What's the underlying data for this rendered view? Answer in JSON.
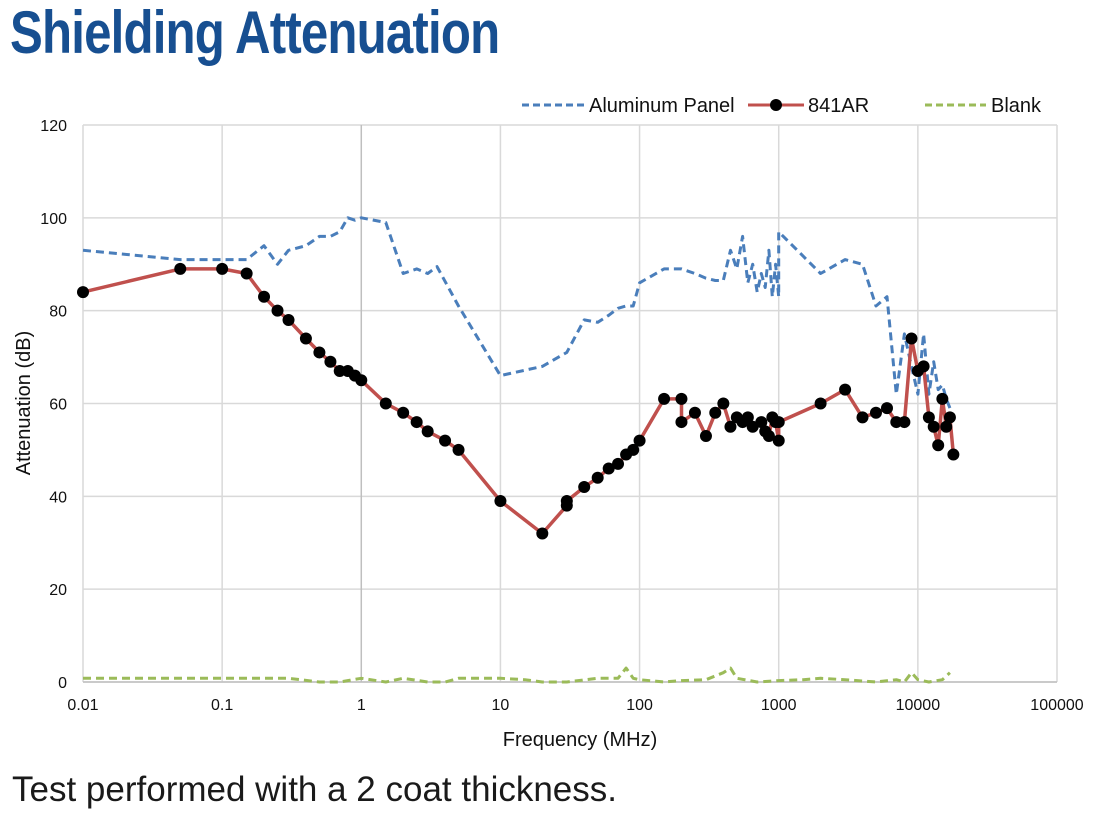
{
  "header": {
    "title": "Shielding Attenuation"
  },
  "footer": {
    "caption": "Test performed with a 2 coat thickness."
  },
  "chart_data": {
    "type": "line",
    "title": "Shielding Attenuation",
    "xlabel": "Frequency (MHz)",
    "ylabel": "Attenuation (dB)",
    "xscale": "log",
    "xlim": [
      0.01,
      100000
    ],
    "ylim": [
      0,
      120
    ],
    "xticks": [
      "0.01",
      "0.1",
      "1",
      "10",
      "100",
      "1000",
      "10000",
      "100000"
    ],
    "xtick_values": [
      0.01,
      0.1,
      1,
      10,
      100,
      1000,
      10000,
      100000
    ],
    "yticks": [
      "0",
      "20",
      "40",
      "60",
      "80",
      "100",
      "120"
    ],
    "ytick_values": [
      0,
      20,
      40,
      60,
      80,
      100,
      120
    ],
    "grid": true,
    "legend_position": "top-right",
    "series": [
      {
        "name": "Aluminum Panel",
        "color": "#4a7ebb",
        "style": "dashed",
        "markers": false,
        "x": [
          0.01,
          0.05,
          0.1,
          0.15,
          0.2,
          0.25,
          0.3,
          0.4,
          0.5,
          0.6,
          0.7,
          0.8,
          0.9,
          1,
          1.5,
          2,
          2.5,
          3,
          3.5,
          5,
          10,
          20,
          30,
          40,
          50,
          60,
          70,
          80,
          90,
          100,
          150,
          200,
          250,
          300,
          350,
          400,
          450,
          500,
          550,
          600,
          650,
          700,
          750,
          800,
          850,
          900,
          950,
          1000,
          1000,
          2000,
          3000,
          4000,
          5000,
          6000,
          7000,
          8000,
          9000,
          10000,
          11000,
          12000,
          13000,
          14000,
          15000,
          16000,
          17000
        ],
        "y": [
          93,
          91,
          91,
          91,
          94,
          90,
          93,
          94,
          96,
          96,
          97,
          100,
          99.5,
          100,
          99,
          88,
          89,
          88,
          89.5,
          81,
          66,
          68,
          71,
          78,
          77.5,
          79,
          80.5,
          81,
          81,
          86,
          89,
          89,
          88,
          87,
          86.5,
          86.5,
          93,
          89,
          96,
          86,
          90,
          84,
          88,
          85,
          93,
          83,
          90,
          83,
          97,
          88,
          91,
          90,
          81,
          83,
          62,
          75,
          68,
          62,
          75,
          62,
          69,
          63,
          64,
          61,
          59
        ]
      },
      {
        "name": "841AR",
        "color": "#c0504d",
        "style": "solid",
        "markers": true,
        "marker_color": "#000000",
        "x": [
          0.01,
          0.05,
          0.1,
          0.15,
          0.2,
          0.25,
          0.3,
          0.4,
          0.5,
          0.6,
          0.7,
          0.8,
          0.9,
          1,
          1.5,
          2,
          2.5,
          3,
          4,
          5,
          10,
          20,
          30,
          30,
          40,
          50,
          60,
          70,
          80,
          90,
          100,
          150,
          200,
          200,
          250,
          300,
          350,
          400,
          450,
          500,
          550,
          600,
          650,
          750,
          800,
          850,
          900,
          950,
          1000,
          1000,
          2000,
          3000,
          4000,
          5000,
          6000,
          7000,
          8000,
          9000,
          10000,
          11000,
          12000,
          13000,
          14000,
          15000,
          16000,
          17000,
          18000
        ],
        "y": [
          84,
          89,
          89,
          88,
          83,
          80,
          78,
          74,
          71,
          69,
          67,
          67,
          66,
          65,
          60,
          58,
          56,
          54,
          52,
          50,
          39,
          32,
          38,
          39,
          42,
          44,
          46,
          47,
          49,
          50,
          52,
          61,
          61,
          56,
          58,
          53,
          58,
          60,
          55,
          57,
          56,
          57,
          55,
          56,
          54,
          53,
          57,
          56,
          52,
          56,
          60,
          63,
          57,
          58,
          59,
          56,
          56,
          74,
          67,
          68,
          57,
          55,
          51,
          61,
          55,
          57,
          49
        ]
      },
      {
        "name": "Blank",
        "color": "#9bbb59",
        "style": "dashed",
        "markers": false,
        "x": [
          0.01,
          0.05,
          0.1,
          0.2,
          0.3,
          0.5,
          0.7,
          1,
          1.5,
          2,
          3,
          4,
          5,
          7,
          10,
          15,
          20,
          30,
          50,
          70,
          80,
          90,
          100,
          150,
          200,
          300,
          400,
          450,
          500,
          700,
          1000,
          1500,
          2000,
          3000,
          5000,
          7000,
          8000,
          9000,
          10000,
          12000,
          15000,
          17000
        ],
        "y": [
          0.8,
          0.8,
          0.8,
          0.8,
          0.8,
          0,
          0,
          0.8,
          0,
          0.8,
          0,
          0,
          0.8,
          0.8,
          0.8,
          0.5,
          0,
          0,
          0.8,
          0.8,
          3,
          0.8,
          0.5,
          0,
          0.3,
          0.5,
          2,
          3,
          0.8,
          0,
          0.3,
          0.5,
          0.8,
          0.5,
          0,
          0.5,
          0,
          2,
          0.5,
          0,
          0.5,
          2
        ]
      }
    ]
  }
}
